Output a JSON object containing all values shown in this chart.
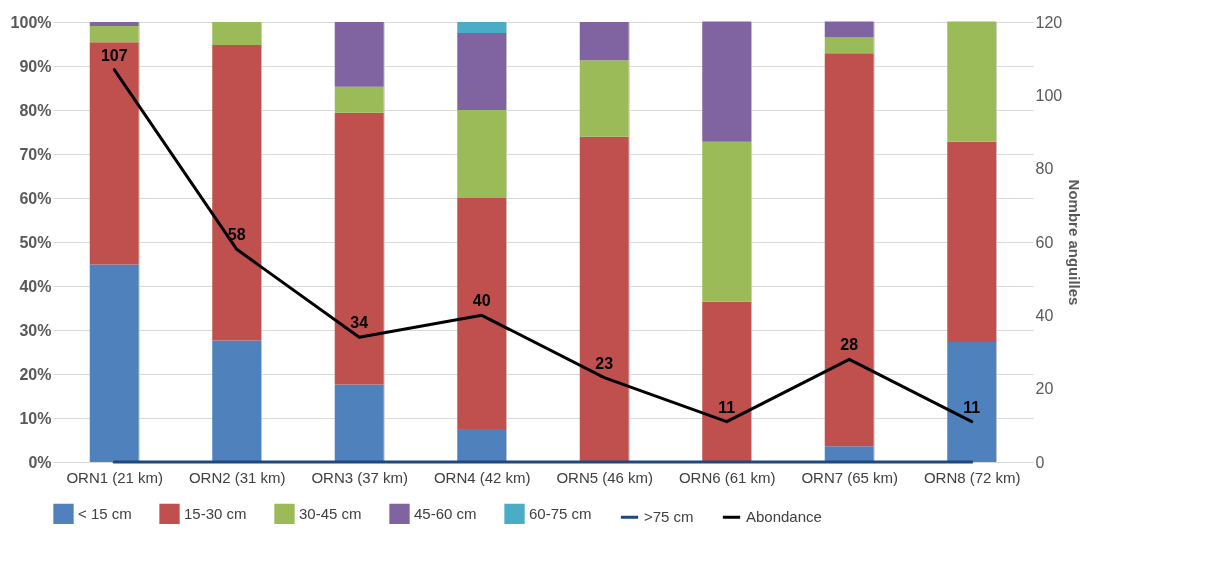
{
  "chart_data": {
    "type": "bar",
    "stacked": true,
    "y2label": "Nombre anguilles",
    "categories": [
      "ORN1 (21 km)",
      "ORN2 (31 km)",
      "ORN3 (37 km)",
      "ORN4 (42 km)",
      "ORN5 (46 km)",
      "ORN6 (61 km)",
      "ORN7 (65 km)",
      "ORN8 (72 km)"
    ],
    "series": [
      {
        "name": "< 15 cm",
        "color": "#4f81bd",
        "values": [
          44.9,
          27.6,
          17.6,
          7.5,
          0,
          0,
          3.6,
          27.3
        ]
      },
      {
        "name": "15-30 cm",
        "color": "#c0504d",
        "values": [
          50.5,
          67.2,
          61.8,
          52.5,
          73.9,
          36.4,
          89.3,
          45.5
        ]
      },
      {
        "name": "30-45 cm",
        "color": "#9bbb59",
        "values": [
          3.7,
          5.2,
          5.9,
          20,
          17.4,
          36.4,
          3.6,
          27.3
        ]
      },
      {
        "name": "45-60 cm",
        "color": "#8064a2",
        "values": [
          0.9,
          0,
          14.7,
          17.5,
          8.7,
          27.3,
          3.6,
          0
        ]
      },
      {
        "name": "60-75 cm",
        "color": "#4bacc6",
        "values": [
          0,
          0,
          0,
          2.5,
          0,
          0,
          0,
          0
        ]
      },
      {
        "name": ">75 cm",
        "type": "line",
        "color": "#1f497d",
        "values": [
          0,
          0,
          0,
          0,
          0,
          0,
          0,
          0
        ]
      },
      {
        "name": "Abondance",
        "type": "line",
        "axis": "y2",
        "color": "#000000",
        "values": [
          107,
          58,
          34,
          40,
          23,
          11,
          28,
          11
        ],
        "value_labels": [
          "107",
          "58",
          "34",
          "40",
          "23",
          "11",
          "28",
          "11"
        ]
      }
    ],
    "ylim": [
      0,
      100
    ],
    "yticks": [
      {
        "value": 0,
        "label": "0%"
      },
      {
        "value": 10,
        "label": "10%"
      },
      {
        "value": 20,
        "label": "20%"
      },
      {
        "value": 30,
        "label": "30%"
      },
      {
        "value": 40,
        "label": "40%"
      },
      {
        "value": 50,
        "label": "50%"
      },
      {
        "value": 60,
        "label": "60%"
      },
      {
        "value": 70,
        "label": "70%"
      },
      {
        "value": 80,
        "label": "80%"
      },
      {
        "value": 90,
        "label": "90%"
      },
      {
        "value": 100,
        "label": "100%"
      }
    ],
    "y2lim": [
      0,
      120
    ],
    "y2ticks": [
      0,
      20,
      40,
      60,
      80,
      100,
      120
    ],
    "grid": true,
    "legend": "bottom"
  }
}
